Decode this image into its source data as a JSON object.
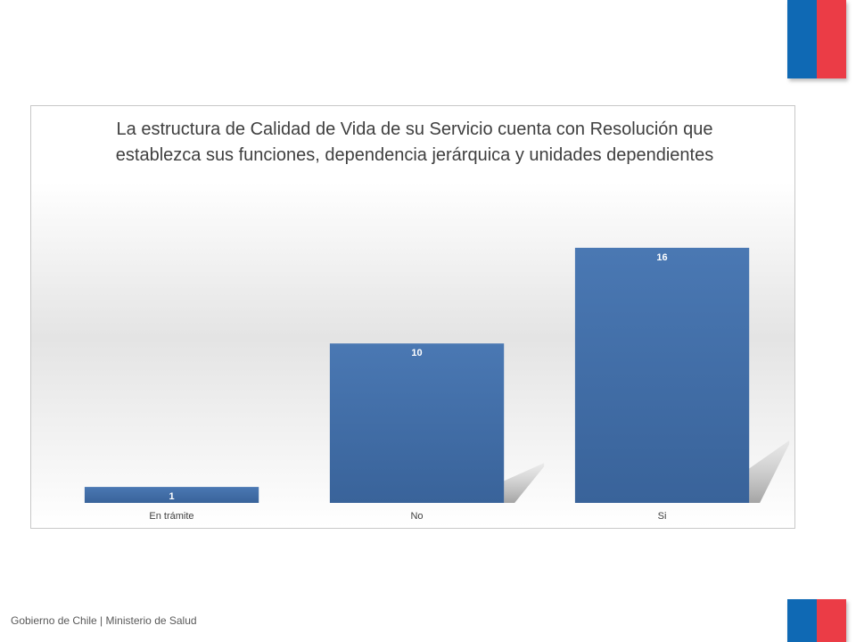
{
  "colors": {
    "bar": "#4a78b3",
    "bar_dark": "#39639a",
    "flag_blue": "#0f69b4",
    "flag_red": "#eb3c46",
    "label_white": "#ffffff",
    "tick_text": "#404040"
  },
  "footer": {
    "text": "Gobierno de Chile | Ministerio de Salud"
  },
  "chart_data": {
    "type": "bar",
    "title": "La estructura de Calidad de Vida de su Servicio cuenta con Resolución que establezca sus funciones, dependencia jerárquica y unidades dependientes",
    "categories": [
      "En trámite",
      "No",
      "Si"
    ],
    "values": [
      1,
      10,
      16
    ],
    "xlabel": "",
    "ylabel": "",
    "ylim": [
      0,
      16.5
    ],
    "grid": false,
    "legend": "none",
    "data_labels": [
      "1",
      "10",
      "16"
    ]
  }
}
